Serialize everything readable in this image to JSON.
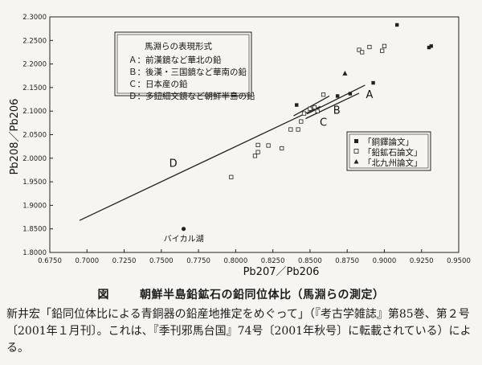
{
  "chart_data": {
    "type": "scatter",
    "xlabel": "Pb207／Pb206",
    "ylabel": "Pb208／Pb206",
    "xlim": [
      0.675,
      0.95
    ],
    "ylim": [
      1.8,
      2.3
    ],
    "x_ticks": [
      "0.6750",
      "0.7000",
      "0.7250",
      "0.7500",
      "0.7750",
      "0.8000",
      "0.8250",
      "0.8500",
      "0.8750",
      "0.9000",
      "0.9250",
      "0.9500"
    ],
    "y_ticks": [
      "1.8000",
      "1.8500",
      "1.9000",
      "1.9500",
      "2.0000",
      "2.0500",
      "2.1000",
      "2.1500",
      "2.2000",
      "2.2500",
      "2.3000"
    ],
    "series": [
      {
        "name": "「銅鐸論文」",
        "marker": "filled-square",
        "points": [
          [
            0.8685,
            2.132
          ],
          [
            0.877,
            2.137
          ],
          [
            0.8925,
            2.16
          ],
          [
            0.9085,
            2.283
          ],
          [
            0.93,
            2.235
          ],
          [
            0.9315,
            2.238
          ]
        ]
      },
      {
        "name": "「鉛鉱石論文」",
        "marker": "open-square",
        "points": [
          [
            0.797,
            1.96
          ],
          [
            0.813,
            2.005
          ],
          [
            0.815,
            2.013
          ],
          [
            0.815,
            2.028
          ],
          [
            0.822,
            2.027
          ],
          [
            0.831,
            2.021
          ],
          [
            0.837,
            2.061
          ],
          [
            0.842,
            2.061
          ],
          [
            0.844,
            2.078
          ],
          [
            0.846,
            2.095
          ],
          [
            0.85,
            2.105
          ],
          [
            0.853,
            2.108
          ],
          [
            0.855,
            2.1
          ],
          [
            0.859,
            2.135
          ],
          [
            0.883,
            2.23
          ],
          [
            0.885,
            2.225
          ],
          [
            0.89,
            2.236
          ],
          [
            0.8985,
            2.228
          ],
          [
            0.9,
            2.238
          ]
        ]
      },
      {
        "name": "「北九州論文」",
        "marker": "filled-triangle",
        "points": [
          [
            0.8735,
            2.18
          ]
        ]
      }
    ],
    "extra_points": [
      {
        "label": "バイカル湖",
        "marker": "filled-circle",
        "x": 0.765,
        "y": 1.85
      },
      {
        "label": "",
        "marker": "filled-square",
        "x": 0.841,
        "y": 2.113
      }
    ],
    "lines": [
      {
        "label": "D",
        "x": [
          0.695,
          0.857
        ],
        "y": [
          1.868,
          2.11
        ]
      },
      {
        "label": "A",
        "x": [
          0.848,
          0.887
        ],
        "y": [
          2.094,
          2.155
        ]
      },
      {
        "label": "B",
        "x": [
          0.847,
          0.883
        ],
        "y": [
          2.084,
          2.138
        ]
      },
      {
        "label": "C",
        "x": [
          0.839,
          0.863
        ],
        "y": [
          2.09,
          2.132
        ]
      }
    ],
    "line_labels": [
      {
        "text": "A",
        "x": 0.89,
        "y": 2.128
      },
      {
        "text": "B",
        "x": 0.868,
        "y": 2.094
      },
      {
        "text": "C",
        "x": 0.859,
        "y": 2.069
      },
      {
        "text": "D",
        "x": 0.758,
        "y": 1.982
      }
    ],
    "grid": false,
    "legend_position": "right"
  },
  "legend_box": {
    "title": "馬淵らの表現形式",
    "items": [
      "Ａ：前漢鏡など華北の鉛",
      "Ｂ：後漢・三国鏡など華南の鉛",
      "Ｃ：日本産の鉛",
      "Ｄ：多鈕細文鏡など朝鮮半島の鉛"
    ]
  },
  "caption": {
    "fig": "図",
    "title": "朝鮮半島鉛鉱石の鉛同位体比（馬淵らの測定）"
  },
  "source_text": "新井宏「鉛同位体比による青銅器の鉛産地推定をめぐって」（『考古学雑誌』第85巻、第２号〔2001年１月刊〕。これは、『季刊邪馬台国』74号〔2001年秋号〕に転載されている）による。"
}
